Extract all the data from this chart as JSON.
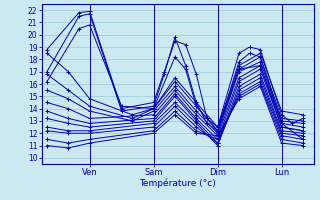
{
  "title": "Température (°c)",
  "ylabel_values": [
    10,
    11,
    12,
    13,
    14,
    15,
    16,
    17,
    18,
    19,
    20,
    21,
    22
  ],
  "ylim": [
    9.5,
    22.5
  ],
  "xlim": [
    -2,
    100
  ],
  "xtick_positions": [
    16,
    40,
    64,
    88
  ],
  "xtick_labels": [
    "Ven",
    "Sam",
    "Dim",
    "Lun"
  ],
  "background_color": "#cce8f0",
  "grid_color": "#99ccd8",
  "line_color": "#0000bb",
  "series": [
    [
      0,
      18.8,
      12,
      21.8,
      16,
      21.9,
      28,
      14.0,
      40,
      14.5,
      44,
      17.0,
      48,
      19.5,
      52,
      19.2,
      56,
      16.8,
      60,
      13.2,
      64,
      12.5,
      72,
      18.5,
      76,
      19.0,
      80,
      18.8,
      88,
      13.5,
      92,
      12.8,
      96,
      13.2
    ],
    [
      0,
      17.0,
      12,
      21.5,
      16,
      21.7,
      28,
      13.8,
      40,
      14.2,
      44,
      16.8,
      48,
      19.8,
      52,
      17.5,
      56,
      14.5,
      60,
      12.8,
      64,
      12.2,
      72,
      17.8,
      76,
      18.5,
      80,
      18.2,
      88,
      12.8,
      96,
      11.5
    ],
    [
      0,
      16.2,
      12,
      20.5,
      16,
      20.8,
      28,
      14.2,
      40,
      14.0,
      48,
      18.2,
      52,
      17.2,
      56,
      14.2,
      60,
      13.2,
      64,
      12.2,
      72,
      17.2,
      80,
      17.5,
      88,
      12.5,
      96,
      12.2
    ],
    [
      0,
      18.5,
      8,
      17.0,
      16,
      14.8,
      32,
      13.5,
      40,
      14.0,
      48,
      16.5,
      56,
      14.5,
      64,
      12.5,
      72,
      17.5,
      80,
      18.5,
      88,
      13.8,
      96,
      13.5
    ],
    [
      0,
      16.8,
      8,
      15.5,
      16,
      14.2,
      32,
      13.2,
      40,
      14.0,
      48,
      16.2,
      56,
      14.2,
      64,
      12.2,
      72,
      17.2,
      80,
      18.2,
      88,
      13.2,
      96,
      13.0
    ],
    [
      0,
      15.5,
      8,
      14.8,
      16,
      13.8,
      32,
      13.0,
      40,
      13.8,
      48,
      15.8,
      56,
      13.8,
      64,
      12.0,
      72,
      17.0,
      80,
      17.8,
      88,
      13.0,
      96,
      12.8
    ],
    [
      0,
      14.5,
      8,
      14.0,
      16,
      13.2,
      40,
      13.5,
      48,
      15.5,
      56,
      13.5,
      64,
      11.8,
      72,
      16.5,
      80,
      17.5,
      88,
      12.8,
      96,
      12.5
    ],
    [
      0,
      13.8,
      8,
      13.2,
      16,
      12.8,
      40,
      13.2,
      48,
      15.2,
      56,
      13.2,
      64,
      11.5,
      72,
      16.2,
      80,
      17.2,
      88,
      12.5,
      96,
      12.2
    ],
    [
      0,
      13.2,
      8,
      12.8,
      16,
      12.5,
      40,
      13.0,
      48,
      15.0,
      56,
      13.0,
      64,
      11.2,
      72,
      15.8,
      80,
      16.8,
      88,
      12.2,
      96,
      12.0
    ],
    [
      0,
      12.5,
      8,
      12.2,
      16,
      12.2,
      40,
      12.8,
      48,
      14.5,
      56,
      12.8,
      64,
      11.0,
      72,
      15.5,
      80,
      16.5,
      88,
      12.0,
      96,
      11.8
    ],
    [
      0,
      12.2,
      8,
      12.0,
      16,
      12.0,
      40,
      12.5,
      48,
      14.2,
      56,
      12.5,
      64,
      11.2,
      72,
      15.2,
      80,
      16.2,
      88,
      11.8,
      96,
      11.5
    ],
    [
      0,
      11.5,
      8,
      11.2,
      16,
      11.5,
      40,
      12.2,
      48,
      13.8,
      56,
      12.2,
      64,
      11.5,
      72,
      15.0,
      80,
      16.0,
      88,
      11.5,
      96,
      11.2
    ],
    [
      0,
      11.0,
      8,
      10.8,
      16,
      11.2,
      40,
      12.0,
      48,
      13.5,
      56,
      12.0,
      64,
      11.8,
      72,
      14.8,
      80,
      15.8,
      88,
      11.2,
      96,
      11.0
    ]
  ],
  "figsize": [
    3.2,
    2.0
  ],
  "dpi": 100
}
